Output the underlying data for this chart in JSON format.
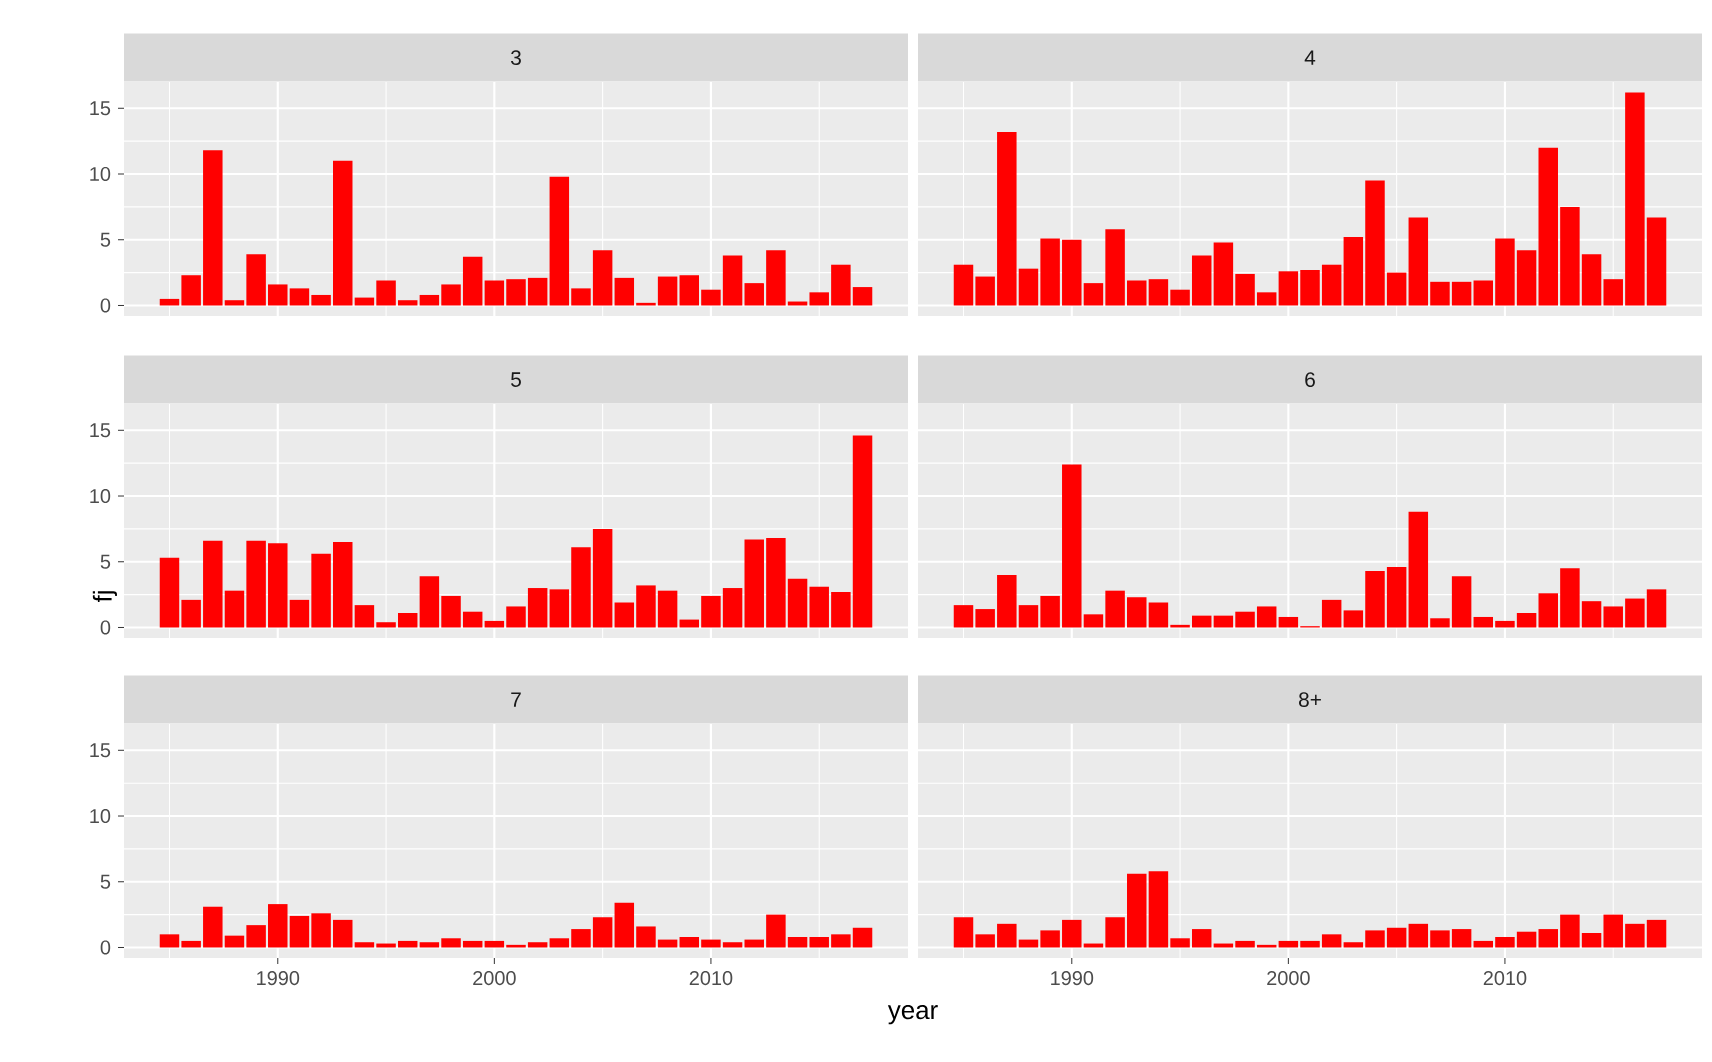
{
  "chart_data": [
    {
      "type": "bar",
      "title": "3",
      "color": "#ff0000",
      "grid": true,
      "tick_labels": "y",
      "xlim": [
        1982.9,
        2019.1
      ],
      "xticks": [
        1990,
        2000,
        2010
      ],
      "ylim": [
        -0.8,
        17
      ],
      "yticks": [
        0,
        5,
        10,
        15
      ],
      "x": [
        1985,
        1986,
        1987,
        1988,
        1989,
        1990,
        1991,
        1992,
        1993,
        1994,
        1995,
        1996,
        1997,
        1998,
        1999,
        2000,
        2001,
        2002,
        2003,
        2004,
        2005,
        2006,
        2007,
        2008,
        2009,
        2010,
        2011,
        2012,
        2013,
        2014,
        2015,
        2016,
        2017
      ],
      "values": [
        0.5,
        2.3,
        11.8,
        0.4,
        3.9,
        1.6,
        1.3,
        0.8,
        11.0,
        0.6,
        1.9,
        0.4,
        0.8,
        1.6,
        3.7,
        1.9,
        2.0,
        2.1,
        9.8,
        1.3,
        4.2,
        2.1,
        0.2,
        2.2,
        2.3,
        1.2,
        3.8,
        1.7,
        4.2,
        0.3,
        1.0,
        3.1,
        1.4
      ]
    },
    {
      "type": "bar",
      "title": "4",
      "color": "#ff0000",
      "grid": true,
      "tick_labels": false,
      "xlim": [
        1982.9,
        2019.1
      ],
      "xticks": [
        1990,
        2000,
        2010
      ],
      "ylim": [
        -0.8,
        17
      ],
      "yticks": [
        0,
        5,
        10,
        15
      ],
      "x": [
        1985,
        1986,
        1987,
        1988,
        1989,
        1990,
        1991,
        1992,
        1993,
        1994,
        1995,
        1996,
        1997,
        1998,
        1999,
        2000,
        2001,
        2002,
        2003,
        2004,
        2005,
        2006,
        2007,
        2008,
        2009,
        2010,
        2011,
        2012,
        2013,
        2014,
        2015,
        2016,
        2017
      ],
      "values": [
        3.1,
        2.2,
        13.2,
        2.8,
        5.1,
        5.0,
        1.7,
        5.8,
        1.9,
        2.0,
        1.2,
        3.8,
        4.8,
        2.4,
        1.0,
        2.6,
        2.7,
        3.1,
        5.2,
        9.5,
        2.5,
        6.7,
        1.8,
        1.8,
        1.9,
        5.1,
        4.2,
        12.0,
        7.5,
        3.9,
        2.0,
        16.2,
        6.7
      ]
    },
    {
      "type": "bar",
      "title": "5",
      "ylabel": "fj",
      "color": "#ff0000",
      "grid": true,
      "tick_labels": "y",
      "xlim": [
        1982.9,
        2019.1
      ],
      "xticks": [
        1990,
        2000,
        2010
      ],
      "ylim": [
        -0.8,
        17
      ],
      "yticks": [
        0,
        5,
        10,
        15
      ],
      "x": [
        1985,
        1986,
        1987,
        1988,
        1989,
        1990,
        1991,
        1992,
        1993,
        1994,
        1995,
        1996,
        1997,
        1998,
        1999,
        2000,
        2001,
        2002,
        2003,
        2004,
        2005,
        2006,
        2007,
        2008,
        2009,
        2010,
        2011,
        2012,
        2013,
        2014,
        2015,
        2016,
        2017
      ],
      "values": [
        5.3,
        2.1,
        6.6,
        2.8,
        6.6,
        6.4,
        2.1,
        5.6,
        6.5,
        1.7,
        0.4,
        1.1,
        3.9,
        2.4,
        1.2,
        0.5,
        1.6,
        3.0,
        2.9,
        6.1,
        7.5,
        1.9,
        3.2,
        2.8,
        0.6,
        2.4,
        3.0,
        6.7,
        6.8,
        3.7,
        3.1,
        2.7,
        14.6
      ]
    },
    {
      "type": "bar",
      "title": "6",
      "color": "#ff0000",
      "grid": true,
      "tick_labels": false,
      "xlim": [
        1982.9,
        2019.1
      ],
      "xticks": [
        1990,
        2000,
        2010
      ],
      "ylim": [
        -0.8,
        17
      ],
      "yticks": [
        0,
        5,
        10,
        15
      ],
      "x": [
        1985,
        1986,
        1987,
        1988,
        1989,
        1990,
        1991,
        1992,
        1993,
        1994,
        1995,
        1996,
        1997,
        1998,
        1999,
        2000,
        2001,
        2002,
        2003,
        2004,
        2005,
        2006,
        2007,
        2008,
        2009,
        2010,
        2011,
        2012,
        2013,
        2014,
        2015,
        2016,
        2017
      ],
      "values": [
        1.7,
        1.4,
        4.0,
        1.7,
        2.4,
        12.4,
        1.0,
        2.8,
        2.3,
        1.9,
        0.2,
        0.9,
        0.9,
        1.2,
        1.6,
        0.8,
        0.1,
        2.1,
        1.3,
        4.3,
        4.6,
        8.8,
        0.7,
        3.9,
        0.8,
        0.5,
        1.1,
        2.6,
        4.5,
        2.0,
        1.6,
        2.2,
        2.9
      ]
    },
    {
      "type": "bar",
      "title": "7",
      "xlabel": "year",
      "color": "#ff0000",
      "grid": true,
      "xlim": [
        1982.9,
        2019.1
      ],
      "xticks": [
        1990,
        2000,
        2010
      ],
      "ylim": [
        -0.8,
        17
      ],
      "yticks": [
        0,
        5,
        10,
        15
      ],
      "x": [
        1985,
        1986,
        1987,
        1988,
        1989,
        1990,
        1991,
        1992,
        1993,
        1994,
        1995,
        1996,
        1997,
        1998,
        1999,
        2000,
        2001,
        2002,
        2003,
        2004,
        2005,
        2006,
        2007,
        2008,
        2009,
        2010,
        2011,
        2012,
        2013,
        2014,
        2015,
        2016,
        2017
      ],
      "values": [
        1.0,
        0.5,
        3.1,
        0.9,
        1.7,
        3.3,
        2.4,
        2.6,
        2.1,
        0.4,
        0.3,
        0.5,
        0.4,
        0.7,
        0.5,
        0.5,
        0.2,
        0.4,
        0.7,
        1.4,
        2.3,
        3.4,
        1.6,
        0.6,
        0.8,
        0.6,
        0.4,
        0.6,
        2.5,
        0.8,
        0.8,
        1.0,
        1.5
      ]
    },
    {
      "type": "bar",
      "title": "8+",
      "color": "#ff0000",
      "grid": true,
      "tick_labels": "x",
      "xlim": [
        1982.9,
        2019.1
      ],
      "xticks": [
        1990,
        2000,
        2010
      ],
      "ylim": [
        -0.8,
        17
      ],
      "yticks": [
        0,
        5,
        10,
        15
      ],
      "x": [
        1985,
        1986,
        1987,
        1988,
        1989,
        1990,
        1991,
        1992,
        1993,
        1994,
        1995,
        1996,
        1997,
        1998,
        1999,
        2000,
        2001,
        2002,
        2003,
        2004,
        2005,
        2006,
        2007,
        2008,
        2009,
        2010,
        2011,
        2012,
        2013,
        2014,
        2015,
        2016,
        2017
      ],
      "values": [
        2.3,
        1.0,
        1.8,
        0.6,
        1.3,
        2.1,
        0.3,
        2.3,
        5.6,
        5.8,
        0.7,
        1.4,
        0.3,
        0.5,
        0.2,
        0.5,
        0.5,
        1.0,
        0.4,
        1.3,
        1.5,
        1.8,
        1.3,
        1.4,
        0.5,
        0.8,
        1.2,
        1.4,
        2.5,
        1.1,
        2.5,
        1.8,
        2.1
      ]
    }
  ]
}
